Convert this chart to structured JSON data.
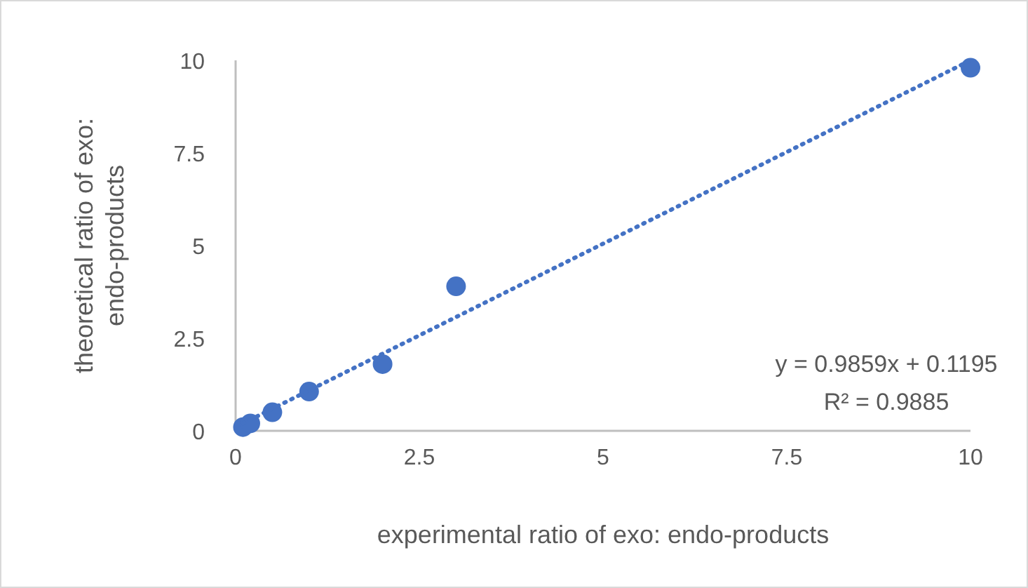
{
  "chart_data": {
    "type": "scatter",
    "xlabel": "experimental ratio of exo: endo-products",
    "ylabel": "theoretical  ratio of exo: endo-products",
    "xlim": [
      0,
      10
    ],
    "ylim": [
      0,
      10
    ],
    "xticks": [
      0,
      2.5,
      5,
      7.5,
      10
    ],
    "yticks": [
      0,
      2.5,
      5,
      7.5,
      10
    ],
    "grid": false,
    "series": [
      {
        "marker": "circle",
        "color": "#4472c4",
        "x": [
          0.1,
          0.2,
          0.5,
          1,
          2,
          3,
          10
        ],
        "values": [
          0.1,
          0.2,
          0.5,
          1.06,
          1.8,
          3.9,
          9.8
        ]
      },
      {
        "type": "line",
        "line_style": "dotted",
        "marker": "none",
        "color": "#4472c4",
        "x": [
          0.1,
          10
        ],
        "values": [
          0.2,
          10
        ]
      }
    ],
    "annotations": [
      "y = 0.9859x + 0.1195",
      "R² = 0.9885"
    ]
  }
}
